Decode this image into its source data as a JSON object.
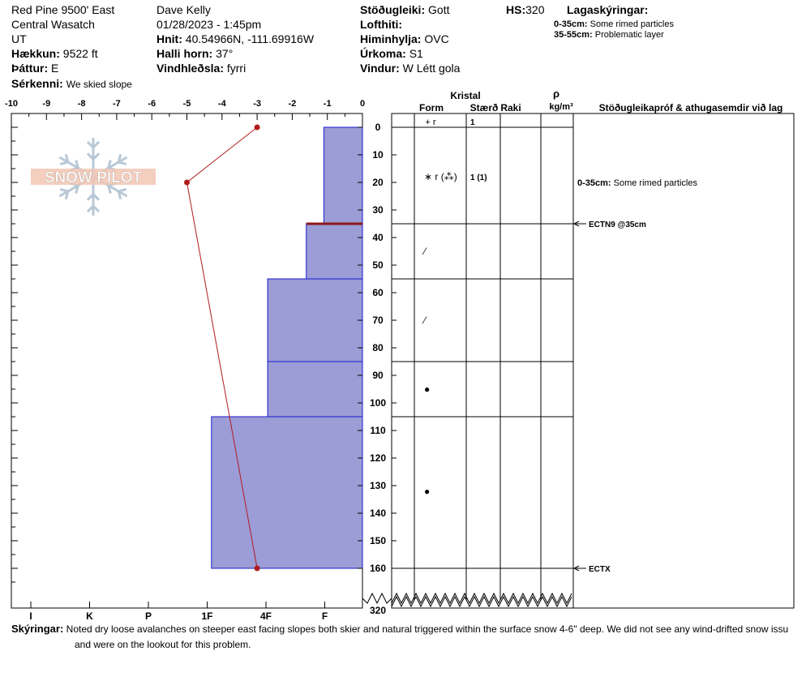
{
  "header": {
    "location": "Red Pine 9500' East",
    "range": "Central Wasatch",
    "state": "UT",
    "elevation_label": "Hækkun:",
    "elevation": "9522 ft",
    "aspect_label": "Þáttur:",
    "aspect": "E",
    "specifics_label": "Sérkenni:",
    "specifics": "We skied slope",
    "observer": "Dave Kelly",
    "datetime": "01/28/2023 - 1:45pm",
    "coords_label": "Hnit:",
    "coords": "40.54966N, -111.69916W",
    "slope_label": "Halli horn:",
    "slope": "37°",
    "wind_loading_label": "Vindhleðsla:",
    "wind_loading": "fyrri",
    "stability_label": "Stöðugleiki:",
    "stability": "Gott",
    "air_temp_label": "Lofthiti:",
    "air_temp": "",
    "sky_label": "Himinhylja:",
    "sky": "OVC",
    "precip_label": "Úrkoma:",
    "precip": "S1",
    "wind_label": "Vindur:",
    "wind": "W Létt gola",
    "hs_label": "HS:",
    "hs": "320",
    "layer_notes_label": "Lagaskýringar:",
    "layer_notes": [
      {
        "range": "0-35cm:",
        "text": "Some rimed particles"
      },
      {
        "range": "35-55cm:",
        "text": "Problematic layer"
      }
    ]
  },
  "columns": {
    "crystal": "Kristal",
    "form": "Form",
    "size": "Stærð",
    "moisture": "Raki",
    "rho": "ρ",
    "density_unit": "kg/m³",
    "tests": "Stöðugleikapróf & athugasemdir við lag"
  },
  "logo_text": "SNOW PILOT",
  "chart_data": {
    "type": "snow-profile",
    "temperature_axis": {
      "ticks": [
        "-10",
        "-9",
        "-8",
        "-7",
        "-6",
        "-5",
        "-4",
        "-3",
        "-2",
        "-1",
        "0"
      ],
      "range": [
        -10,
        0
      ]
    },
    "hardness_axis": {
      "ticks": [
        "I",
        "K",
        "P",
        "1F",
        "4F",
        "F"
      ]
    },
    "depth_axis": {
      "ticks": [
        "0",
        "10",
        "20",
        "30",
        "40",
        "50",
        "60",
        "70",
        "80",
        "90",
        "100",
        "110",
        "120",
        "130",
        "140",
        "150",
        "160"
      ],
      "range": [
        0,
        165
      ],
      "bottom_label": "320"
    },
    "temperature_profile": [
      {
        "depth": 0,
        "temp": -3.0
      },
      {
        "depth": 20,
        "temp": -5.0
      },
      {
        "depth": 160,
        "temp": -3.0
      }
    ],
    "layers": [
      {
        "top": 0,
        "bottom": 35,
        "hardness": -1.1,
        "form": "+ r",
        "size": "1"
      },
      {
        "top": 35,
        "bottom": 55,
        "hardness": -1.6,
        "form": "",
        "size": ""
      },
      {
        "top": 55,
        "bottom": 85,
        "hardness": -2.7,
        "form": "",
        "size": ""
      },
      {
        "top": 85,
        "bottom": 105,
        "hardness": -2.7,
        "form": "",
        "size": ""
      },
      {
        "top": 105,
        "bottom": 160,
        "hardness": -4.3,
        "form": "",
        "size": ""
      }
    ],
    "weak_layer_depth": 35,
    "grain_symbols": [
      {
        "depth": 18,
        "symbol": "∗ r (⁂)",
        "size": "1 (1)"
      },
      {
        "depth": 45,
        "symbol": "⁄",
        "size": ""
      },
      {
        "depth": 70,
        "symbol": "⁄",
        "size": ""
      },
      {
        "depth": 95,
        "symbol": "●",
        "size": ""
      },
      {
        "depth": 132,
        "symbol": "●",
        "size": ""
      }
    ],
    "layer_comment": {
      "depth": 20,
      "range": "0-35cm:",
      "text": "Some rimed particles"
    },
    "tests": [
      {
        "depth": 35,
        "label": "ECTN9 @35cm"
      },
      {
        "depth": 160,
        "label": "ECTX"
      }
    ]
  },
  "comments": {
    "label": "Skýringar:",
    "text": "Noted dry loose avalanches on steeper east facing slopes both skier and natural triggered within the surface snow 4-6\" deep. We did not see any wind-drifted snow issu",
    "text2": "and were on the lookout for this problem."
  }
}
